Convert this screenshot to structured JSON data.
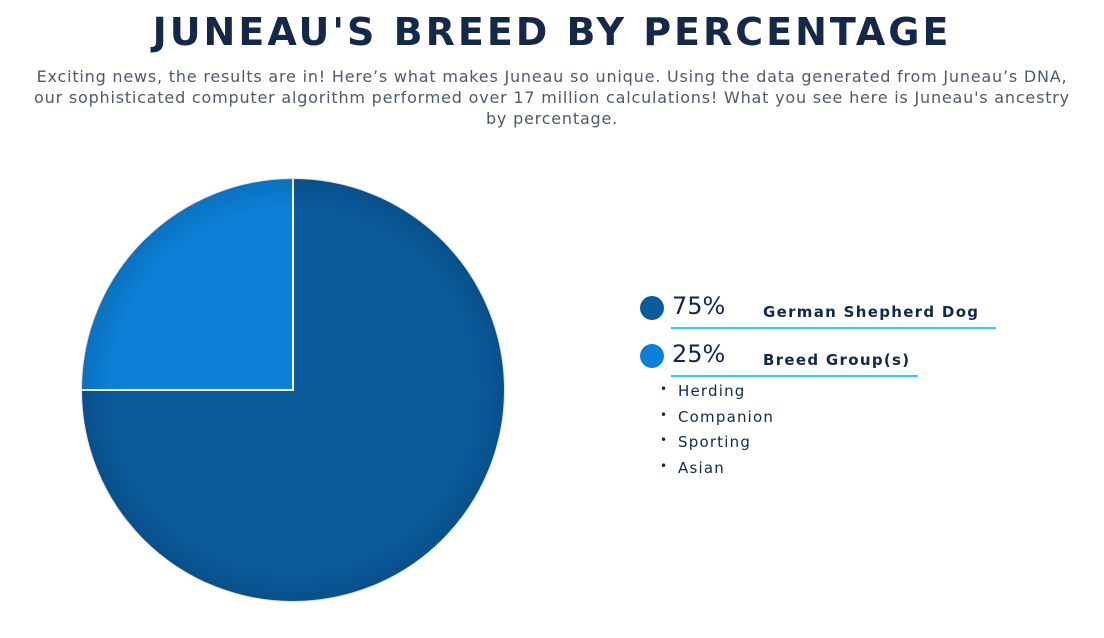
{
  "title": "JUNEAU'S BREED BY PERCENTAGE",
  "intro": "Exciting news, the results are in! Here’s what makes Juneau so unique. Using the data generated from Juneau’s DNA, our sophisticated computer algorithm performed over 17 million calculations! What you see here is Juneau's ancestry by percentage.",
  "chart_data": {
    "type": "pie",
    "title": "",
    "slices": [
      {
        "label": "German Shepherd Dog",
        "value": 75,
        "percent_label": "75%",
        "color": "#0a5a9c"
      },
      {
        "label": "Breed Group(s)",
        "value": 25,
        "percent_label": "25%",
        "color": "#0c80d8"
      }
    ],
    "legend_position": "right"
  },
  "breed_groups": {
    "bullet": "•",
    "items": [
      "Herding",
      "Companion",
      "Sporting",
      "Asian"
    ]
  },
  "colors": {
    "accent_underline": "#2bd3e8",
    "heading": "#14294a"
  }
}
